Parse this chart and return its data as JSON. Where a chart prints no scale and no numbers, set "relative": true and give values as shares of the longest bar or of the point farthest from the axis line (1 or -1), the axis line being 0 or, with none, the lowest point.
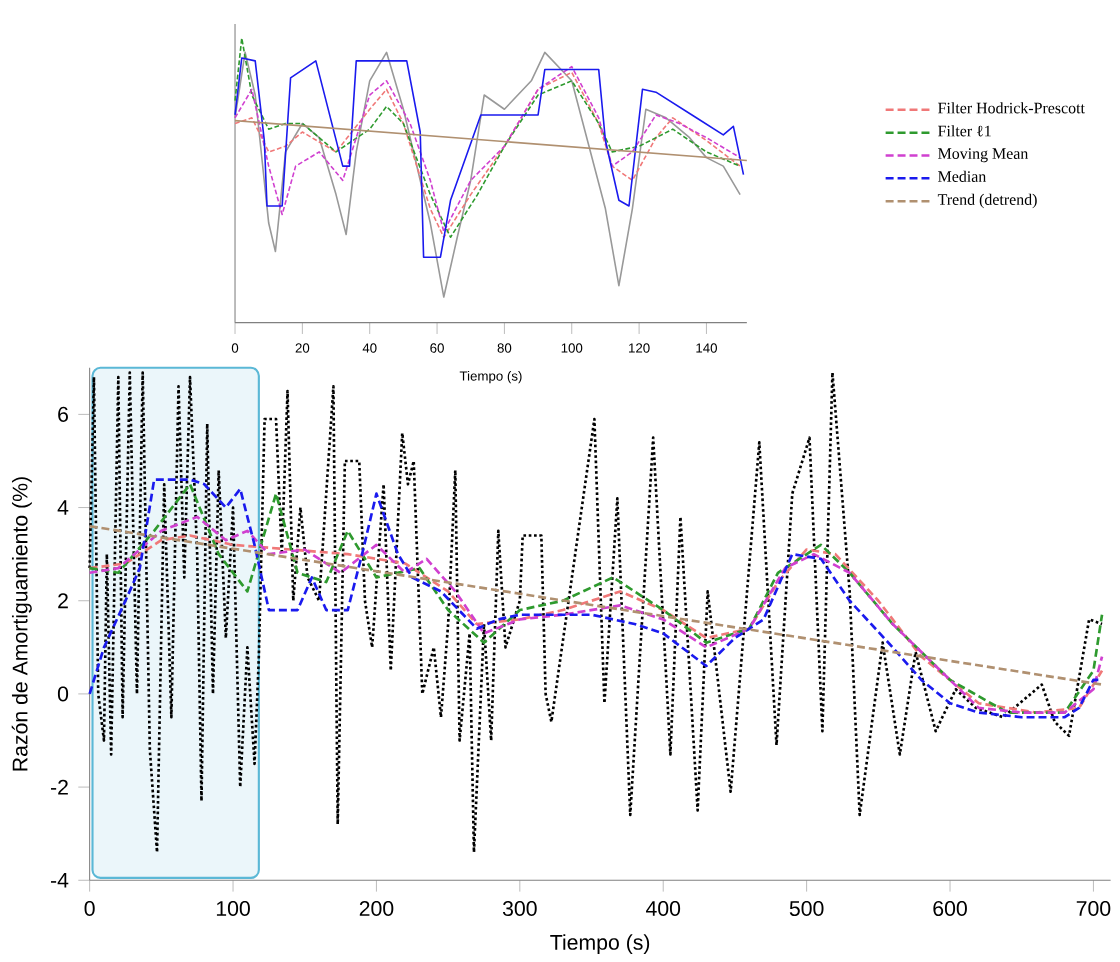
{
  "chart_data": [
    {
      "type": "line",
      "xlabel": "Tiempo (s)",
      "ylabel": "Razón de Amortiguamiento (%)",
      "xlim": [
        0,
        712
      ],
      "ylim": [
        -4,
        7
      ],
      "xticks": [
        0,
        100,
        200,
        300,
        400,
        500,
        600,
        700
      ],
      "yticks": [
        -4,
        -2,
        0,
        2,
        4,
        6
      ],
      "legend": "top right",
      "bands": [
        {
          "axis": "x",
          "from": 2,
          "to": 118,
          "color": "#5bb8d6"
        }
      ],
      "series": [
        {
          "color": "#000000",
          "line_style": "dotted",
          "x": [
            0,
            3,
            6,
            10,
            12,
            15,
            20,
            23,
            28,
            33,
            37,
            42,
            47,
            52,
            57,
            62,
            66,
            70,
            75,
            78,
            82,
            86,
            90,
            95,
            100,
            105,
            110,
            115,
            118,
            122,
            130,
            134,
            138,
            142,
            147,
            152,
            160,
            170,
            173,
            178,
            188,
            192,
            197,
            205,
            210,
            218,
            222,
            226,
            232,
            240,
            245,
            250,
            255,
            258,
            265,
            268,
            275,
            280,
            285,
            290,
            300,
            302,
            315,
            318,
            322,
            352,
            359,
            368,
            377,
            393,
            405,
            412,
            424,
            431,
            447,
            467,
            479,
            490,
            502,
            511,
            518,
            530,
            537,
            553,
            565,
            576,
            590,
            604,
            618,
            637,
            664,
            673,
            683,
            697,
            706
          ],
          "values": [
            2.7,
            6.8,
            0,
            -1,
            3,
            -1.3,
            6.8,
            -0.5,
            6.9,
            0,
            6.9,
            -1.2,
            -3.4,
            4.5,
            -0.5,
            6.6,
            2.5,
            6.8,
            3,
            -2.3,
            5.8,
            0,
            4.8,
            1.2,
            4,
            -2,
            1,
            -1.5,
            0.8,
            5.9,
            5.9,
            3,
            6.5,
            2,
            4,
            2.5,
            2,
            6.6,
            -2.8,
            5,
            5,
            2,
            1,
            4.5,
            0.5,
            5.6,
            4.5,
            5,
            0,
            1,
            -0.5,
            1.5,
            4.8,
            -1,
            1.3,
            -3.4,
            1.5,
            -1,
            3.5,
            1,
            2,
            3.4,
            3.4,
            0,
            -0.6,
            5.9,
            -0.2,
            4.2,
            -2.6,
            5.5,
            -1.3,
            3.8,
            -2.5,
            2.2,
            -2.1,
            5.4,
            -1.1,
            4.3,
            5.5,
            -0.8,
            6.9,
            2.2,
            -2.6,
            1.1,
            -1.3,
            0.9,
            -0.8,
            0.1,
            -0.3,
            -0.5,
            0.2,
            -0.6,
            -0.9,
            1.6,
            1.5
          ]
        },
        {
          "name": "Filter Hodrick-Prescott",
          "color": "#f07878",
          "line_style": "dashed",
          "x": [
            0,
            25,
            50,
            70,
            100,
            140,
            180,
            220,
            250,
            270,
            300,
            330,
            370,
            400,
            430,
            460,
            480,
            500,
            520,
            550,
            580,
            620,
            660,
            690,
            706
          ],
          "values": [
            2.7,
            2.8,
            3.3,
            3.4,
            3.2,
            3.1,
            3.0,
            2.8,
            2.2,
            1.5,
            1.6,
            1.8,
            2.2,
            1.8,
            1.2,
            1.4,
            2.4,
            3.1,
            3.0,
            2.0,
            0.8,
            -0.2,
            -0.4,
            -0.3,
            0.5
          ]
        },
        {
          "name": "Filter ℓ1",
          "color": "#2e9a2e",
          "line_style": "dashed",
          "x": [
            0,
            20,
            45,
            70,
            90,
            110,
            130,
            145,
            165,
            180,
            200,
            230,
            250,
            275,
            300,
            330,
            365,
            400,
            430,
            460,
            480,
            510,
            530,
            560,
            600,
            640,
            680,
            700,
            706
          ],
          "values": [
            2.7,
            2.6,
            3.5,
            4.5,
            3,
            2.2,
            4.3,
            2.6,
            2.4,
            3.5,
            2.5,
            2.7,
            1.8,
            1.1,
            1.8,
            2.0,
            2.5,
            1.8,
            1.1,
            1.4,
            2.6,
            3.2,
            2.6,
            1.5,
            0.3,
            -0.4,
            -0.4,
            0.5,
            1.7
          ]
        },
        {
          "name": "Moving Mean",
          "color": "#d040d0",
          "line_style": "dashed",
          "x": [
            0,
            20,
            50,
            75,
            95,
            110,
            125,
            150,
            175,
            200,
            220,
            235,
            255,
            275,
            300,
            330,
            370,
            400,
            430,
            460,
            485,
            505,
            530,
            560,
            590,
            620,
            650,
            680,
            700,
            706
          ],
          "values": [
            2.6,
            2.7,
            3.5,
            3.8,
            3.3,
            3.5,
            3.0,
            3.1,
            2.6,
            3.2,
            2.6,
            2.9,
            2.2,
            1.3,
            1.6,
            1.7,
            1.9,
            1.6,
            1.0,
            1.4,
            2.7,
            3.0,
            2.6,
            1.5,
            0.6,
            -0.3,
            -0.4,
            -0.4,
            0.1,
            0.8
          ]
        },
        {
          "name": "Median",
          "color": "#1a1aee",
          "line_style": "dashed",
          "x": [
            0,
            10,
            25,
            35,
            45,
            70,
            80,
            95,
            105,
            115,
            125,
            145,
            155,
            165,
            180,
            190,
            200,
            215,
            225,
            245,
            270,
            285,
            300,
            350,
            380,
            400,
            430,
            450,
            470,
            490,
            510,
            530,
            560,
            580,
            600,
            620,
            650,
            680,
            690,
            700,
            706
          ],
          "values": [
            0,
            1,
            2,
            2.7,
            4.6,
            4.6,
            4.5,
            4,
            4.4,
            3.2,
            1.8,
            1.8,
            2.5,
            1.8,
            1.8,
            3,
            4.3,
            3,
            2.5,
            2.2,
            1.4,
            1.6,
            1.7,
            1.7,
            1.5,
            1.3,
            0.6,
            1.2,
            1.6,
            3.0,
            2.9,
            2.0,
            1.0,
            0.3,
            -0.2,
            -0.4,
            -0.5,
            -0.5,
            -0.3,
            0.3,
            0.3
          ]
        },
        {
          "name": "Trend (detrend)",
          "color": "#b09070",
          "line_style": "dashed",
          "x": [
            0,
            300,
            706
          ],
          "values": [
            3.6,
            2.15,
            0.2
          ]
        }
      ]
    },
    {
      "type": "line",
      "relative": true,
      "xlabel": "Tiempo (s)",
      "xlim": [
        0,
        152
      ],
      "xticks": [
        0,
        20,
        40,
        60,
        80,
        100,
        120,
        140
      ],
      "tick_labels": "x",
      "series": [
        {
          "color": "#999999",
          "line_style": "solid",
          "x": [
            0,
            3,
            6,
            10,
            12,
            15,
            20,
            25,
            30,
            33,
            36,
            40,
            45,
            50,
            58,
            62,
            66,
            70,
            74,
            80,
            88,
            92,
            100,
            110,
            114,
            118,
            122,
            128,
            135,
            140,
            145,
            150
          ],
          "values": [
            0.72,
            0.95,
            0.8,
            0.35,
            0.25,
            0.6,
            0.7,
            0.65,
            0.45,
            0.31,
            0.6,
            0.85,
            0.95,
            0.75,
            0.35,
            0.09,
            0.3,
            0.5,
            0.8,
            0.75,
            0.85,
            0.95,
            0.85,
            0.4,
            0.13,
            0.4,
            0.75,
            0.72,
            0.65,
            0.58,
            0.55,
            0.45
          ]
        },
        {
          "color": "#f07878",
          "line_style": "dashed",
          "x": [
            0,
            5,
            10,
            15,
            20,
            30,
            40,
            45,
            50,
            58,
            62,
            70,
            80,
            90,
            100,
            108,
            112,
            118,
            125,
            130,
            140,
            150
          ],
          "values": [
            0.7,
            0.72,
            0.6,
            0.62,
            0.67,
            0.6,
            0.75,
            0.82,
            0.7,
            0.4,
            0.3,
            0.45,
            0.62,
            0.82,
            0.88,
            0.7,
            0.55,
            0.5,
            0.65,
            0.72,
            0.64,
            0.55
          ]
        },
        {
          "color": "#2e9a2e",
          "line_style": "dashed",
          "x": [
            0,
            2,
            5,
            10,
            15,
            20,
            30,
            40,
            45,
            50,
            58,
            64,
            72,
            80,
            90,
            100,
            108,
            112,
            120,
            130,
            140,
            150
          ],
          "values": [
            0.78,
            1,
            0.8,
            0.68,
            0.7,
            0.7,
            0.6,
            0.68,
            0.76,
            0.7,
            0.45,
            0.3,
            0.45,
            0.62,
            0.8,
            0.85,
            0.7,
            0.6,
            0.62,
            0.68,
            0.6,
            0.55
          ]
        },
        {
          "color": "#d040d0",
          "line_style": "dashed",
          "x": [
            0,
            5,
            10,
            14,
            18,
            25,
            32,
            40,
            45,
            52,
            58,
            62,
            70,
            80,
            90,
            100,
            108,
            112,
            118,
            125,
            132,
            140,
            150
          ],
          "values": [
            0.72,
            0.82,
            0.55,
            0.38,
            0.55,
            0.6,
            0.5,
            0.8,
            0.85,
            0.7,
            0.5,
            0.32,
            0.5,
            0.62,
            0.82,
            0.9,
            0.72,
            0.55,
            0.6,
            0.73,
            0.7,
            0.65,
            0.58
          ]
        },
        {
          "color": "#1a1aee",
          "line_style": "solid",
          "x": [
            0,
            2,
            6,
            8.7,
            9.5,
            14,
            16.5,
            24,
            32,
            34,
            36,
            51,
            55,
            56,
            61,
            64,
            73,
            90,
            92,
            108,
            110,
            114,
            117,
            121,
            125,
            137,
            145,
            148,
            151
          ],
          "values": [
            0.73,
            0.93,
            0.92,
            0.64,
            0.41,
            0.41,
            0.86,
            0.92,
            0.55,
            0.55,
            0.92,
            0.92,
            0.67,
            0.23,
            0.23,
            0.43,
            0.73,
            0.73,
            0.89,
            0.89,
            0.64,
            0.43,
            0.41,
            0.82,
            0.81,
            0.72,
            0.66,
            0.69,
            0.52
          ]
        },
        {
          "color": "#b09070",
          "line_style": "solid",
          "x": [
            0,
            152
          ],
          "values": [
            0.71,
            0.57
          ]
        }
      ]
    }
  ]
}
